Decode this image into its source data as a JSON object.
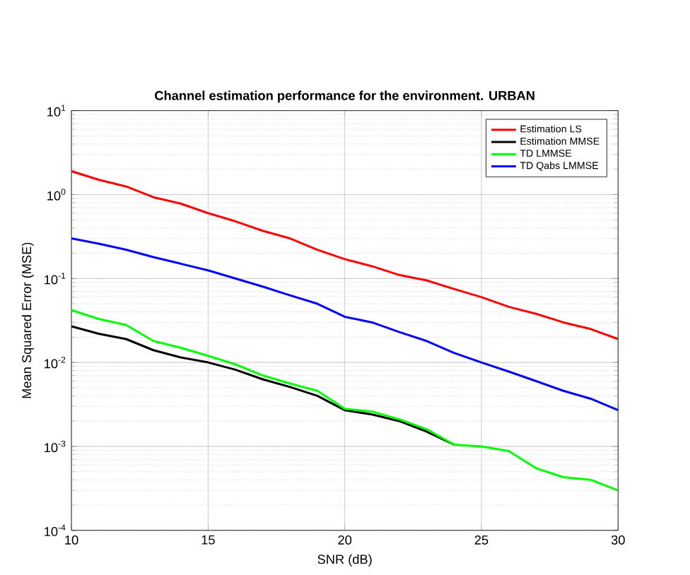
{
  "chart_data": {
    "type": "line",
    "title": "Channel estimation performance for the environment. URBAN",
    "xlabel": "SNR (dB)",
    "ylabel": "Mean Squared Error (MSE)",
    "x": [
      10,
      11,
      12,
      13,
      14,
      15,
      16,
      17,
      18,
      19,
      20,
      21,
      22,
      23,
      24,
      25,
      26,
      27,
      28,
      29,
      30
    ],
    "series": [
      {
        "name": "Estimation LS",
        "color": "#ff0000",
        "values": [
          1.9,
          1.5,
          1.25,
          0.93,
          0.78,
          0.6,
          0.48,
          0.37,
          0.3,
          0.22,
          0.17,
          0.14,
          0.11,
          0.095,
          0.075,
          0.06,
          0.046,
          0.038,
          0.03,
          0.025,
          0.019
        ]
      },
      {
        "name": "Estimation MMSE",
        "color": "#000000",
        "values": [
          0.027,
          0.022,
          0.019,
          0.014,
          0.0115,
          0.01,
          0.0082,
          0.0063,
          0.0051,
          0.004,
          0.0027,
          0.0024,
          0.002,
          0.0015,
          0.00105,
          null,
          null,
          null,
          null,
          null,
          null
        ]
      },
      {
        "name": "TD LMMSE",
        "color": "#00ff00",
        "values": [
          0.042,
          0.033,
          0.028,
          0.018,
          0.015,
          0.012,
          0.0095,
          0.007,
          0.0056,
          0.0046,
          0.0028,
          0.0026,
          0.0021,
          0.0016,
          0.00105,
          0.001,
          0.00088,
          0.00055,
          0.00043,
          0.0004,
          0.0003
        ]
      },
      {
        "name": "TD Qabs LMMSE",
        "color": "#0000ff",
        "values": [
          0.3,
          0.26,
          0.22,
          0.18,
          0.15,
          0.125,
          0.1,
          0.08,
          0.063,
          0.05,
          0.035,
          0.03,
          0.023,
          0.018,
          0.013,
          0.01,
          0.0078,
          0.006,
          0.0046,
          0.0037,
          0.0027
        ]
      }
    ],
    "xlim": [
      10,
      30
    ],
    "ylim": [
      0.0001,
      10
    ],
    "xticks": [
      10,
      15,
      20,
      25,
      30
    ],
    "yticks": [
      {
        "value": 0.0001,
        "label": "10$^{-4}$"
      },
      {
        "value": 0.001,
        "label": "10$^{-3}$"
      },
      {
        "value": 0.01,
        "label": "10$^{-2}$"
      },
      {
        "value": 0.1,
        "label": "10$^{-1}$"
      },
      {
        "value": 1,
        "label": "10$^{0}$"
      },
      {
        "value": 10,
        "label": "10$^{1}$"
      }
    ],
    "log": "y",
    "grid": true,
    "legend": "top right",
    "marker": "none",
    "line_style": "solid"
  }
}
